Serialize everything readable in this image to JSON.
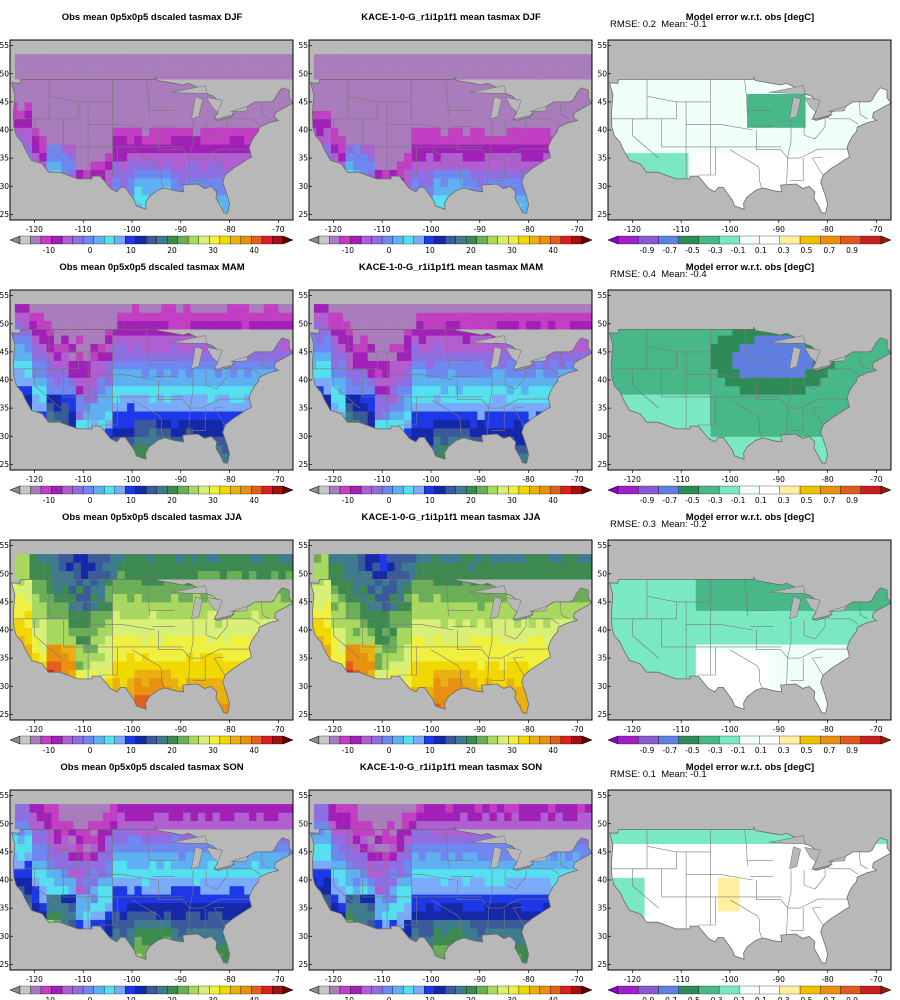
{
  "rows": [
    {
      "season": "DJF",
      "panels": [
        {
          "kind": "obs",
          "title": "Obs mean 0p5x0p5 dscaled tasmax DJF"
        },
        {
          "kind": "model",
          "title": "KACE-1-0-G_r1i1p1f1 mean tasmax DJF"
        },
        {
          "kind": "error",
          "title": "Model error w.r.t. obs [degC]",
          "rmse": "RMSE: 0.2",
          "mean": "Mean: -0.1"
        }
      ]
    },
    {
      "season": "MAM",
      "panels": [
        {
          "kind": "obs",
          "title": "Obs mean 0p5x0p5 dscaled tasmax MAM"
        },
        {
          "kind": "model",
          "title": "KACE-1-0-G_r1i1p1f1 mean tasmax MAM"
        },
        {
          "kind": "error",
          "title": "Model error w.r.t. obs [degC]",
          "rmse": "RMSE: 0.4",
          "mean": "Mean: -0.4"
        }
      ]
    },
    {
      "season": "JJA",
      "panels": [
        {
          "kind": "obs",
          "title": "Obs mean 0p5x0p5 dscaled tasmax JJA"
        },
        {
          "kind": "model",
          "title": "KACE-1-0-G_r1i1p1f1 mean tasmax JJA"
        },
        {
          "kind": "error",
          "title": "Model error w.r.t. obs [degC]",
          "rmse": "RMSE: 0.3",
          "mean": "Mean: -0.2"
        }
      ]
    },
    {
      "season": "SON",
      "panels": [
        {
          "kind": "obs",
          "title": "Obs mean 0p5x0p5 dscaled tasmax SON"
        },
        {
          "kind": "model",
          "title": "KACE-1-0-G_r1i1p1f1 mean tasmax SON"
        },
        {
          "kind": "error",
          "title": "Model error w.r.t. obs [degC]",
          "rmse": "RMSE: 0.1",
          "mean": "Mean: -0.1"
        }
      ]
    }
  ],
  "map_axes": {
    "lon_ticks": [
      "-120",
      "-110",
      "-100",
      "-90",
      "-80",
      "-70"
    ],
    "lat_ticks": [
      "55",
      "50",
      "45",
      "40",
      "35",
      "30",
      "25"
    ],
    "lon_range": [
      -125,
      -67
    ],
    "lat_range": [
      24,
      56
    ]
  },
  "colorbars": {
    "temperature": {
      "labels": [
        "-10",
        "0",
        "10",
        "20",
        "30",
        "40"
      ],
      "colors": [
        "#8a8a8a",
        "#c8c8c8",
        "#a97cbc",
        "#c23ec3",
        "#a020b8",
        "#b05fd0",
        "#8e6ee0",
        "#6e88f0",
        "#5fb0f0",
        "#55e0f0",
        "#7aaaf8",
        "#1e38e8",
        "#1428a8",
        "#3a5a9a",
        "#3f7a8f",
        "#3c8a50",
        "#6cae58",
        "#a8d860",
        "#d8f078",
        "#f0f040",
        "#f0d800",
        "#e8b010",
        "#e89010",
        "#e06020",
        "#d82020",
        "#a01010",
        "#600000"
      ]
    },
    "error": {
      "labels": [
        "-0.9",
        "-0.7",
        "-0.5",
        "-0.3",
        "-0.1",
        "0.1",
        "0.3",
        "0.5",
        "0.7",
        "0.9"
      ],
      "colors": [
        "#8a00c8",
        "#a020c8",
        "#8a5ad0",
        "#5f80e0",
        "#2e8b57",
        "#48b888",
        "#7ae8c0",
        "#f0fff8",
        "#ffffff",
        "#fff0a0",
        "#f0c000",
        "#e89010",
        "#e05a20",
        "#c82020",
        "#8a2010"
      ]
    }
  },
  "map_colors": {
    "background": "#b8b8b8",
    "borders": "#7a7a7a"
  }
}
